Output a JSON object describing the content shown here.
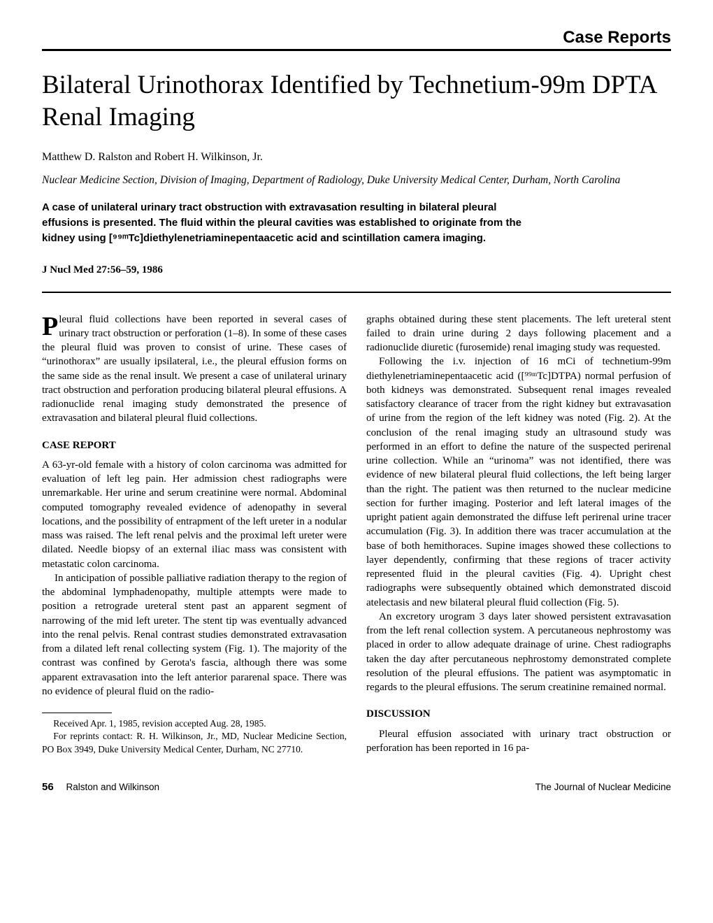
{
  "header_label": "Case Reports",
  "title": "Bilateral Urinothorax Identified by Technetium-99m DPTA Renal Imaging",
  "authors": "Matthew D. Ralston and Robert H. Wilkinson, Jr.",
  "affiliation": "Nuclear Medicine Section, Division of Imaging, Department of Radiology, Duke University Medical Center, Durham, North Carolina",
  "abstract": "A case of unilateral urinary tract obstruction with extravasation resulting in bilateral pleural effusions is presented. The fluid within the pleural cavities was established to originate from the kidney using [⁹⁹ᵐTc]diethylenetriaminepentaacetic acid and scintillation camera imaging.",
  "citation": "J Nucl Med 27:56–59, 1986",
  "dropcap": "P",
  "intro_first": "leural fluid collections have been reported in several cases of urinary tract obstruction or perforation (1–8). In some of these cases the pleural fluid was proven to consist of urine. These cases of “urinothorax” are usually ipsilateral, i.e., the pleural effusion forms on the same side as the renal insult. We present a case of unilateral urinary tract obstruction and perforation producing bilateral pleural effusions. A radionuclide renal imaging study demonstrated the presence of extravasation and bilateral pleural fluid collections.",
  "case_head": "CASE REPORT",
  "case_p1": "A 63-yr-old female with a history of colon carcinoma was admitted for evaluation of left leg pain. Her admission chest radiographs were unremarkable. Her urine and serum creatinine were normal. Abdominal computed tomography revealed evidence of adenopathy in several locations, and the possibility of entrapment of the left ureter in a nodular mass was raised. The left renal pelvis and the proximal left ureter were dilated. Needle biopsy of an external iliac mass was consistent with metastatic colon carcinoma.",
  "case_p2": "In anticipation of possible palliative radiation therapy to the region of the abdominal lymphadenopathy, multiple attempts were made to position a retrograde ureteral stent past an apparent segment of narrowing of the mid left ureter. The stent tip was eventually advanced into the renal pelvis. Renal contrast studies demonstrated extravasation from a dilated left renal collecting system (Fig. 1). The majority of the contrast was confined by Gerota's fascia, although there was some apparent extravasation into the left anterior pararenal space. There was no evidence of pleural fluid on the radio-",
  "footnote_received": "Received Apr. 1, 1985, revision accepted Aug. 28, 1985.",
  "footnote_reprints": "For reprints contact: R. H. Wilkinson, Jr., MD, Nuclear Medicine Section, PO Box 3949, Duke University Medical Center, Durham, NC 27710.",
  "col2_p1": "graphs obtained during these stent placements. The left ureteral stent failed to drain urine during 2 days following placement and a radionuclide diuretic (furosemide) renal imaging study was requested.",
  "col2_p2": "Following the i.v. injection of 16 mCi of technetium-99m diethylenetriaminepentaacetic acid ([⁹⁹ᵐTc]DTPA) normal perfusion of both kidneys was demonstrated. Subsequent renal images revealed satisfactory clearance of tracer from the right kidney but extravasation of urine from the region of the left kidney was noted (Fig. 2). At the conclusion of the renal imaging study an ultrasound study was performed in an effort to define the nature of the suspected perirenal urine collection. While an “urinoma” was not identified, there was evidence of new bilateral pleural fluid collections, the left being larger than the right. The patient was then returned to the nuclear medicine section for further imaging. Posterior and left lateral images of the upright patient again demonstrated the diffuse left perirenal urine tracer accumulation (Fig. 3). In addition there was tracer accumulation at the base of both hemithoraces. Supine images showed these collections to layer dependently, confirming that these regions of tracer activity represented fluid in the pleural cavities (Fig. 4). Upright chest radiographs were subsequently obtained which demonstrated discoid atelectasis and new bilateral pleural fluid collection (Fig. 5).",
  "col2_p3": "An excretory urogram 3 days later showed persistent extravasation from the left renal collection system. A percutaneous nephrostomy was placed in order to allow adequate drainage of urine. Chest radiographs taken the day after percutaneous nephrostomy demonstrated complete resolution of the pleural effusions. The patient was asymptomatic in regards to the pleural effusions. The serum creatinine remained normal.",
  "discussion_head": "DISCUSSION",
  "discussion_p1": "Pleural effusion associated with urinary tract obstruction or perforation has been reported in 16 pa-",
  "footer": {
    "page_num": "56",
    "authors_short": "Ralston and Wilkinson",
    "journal": "The Journal of Nuclear Medicine"
  }
}
